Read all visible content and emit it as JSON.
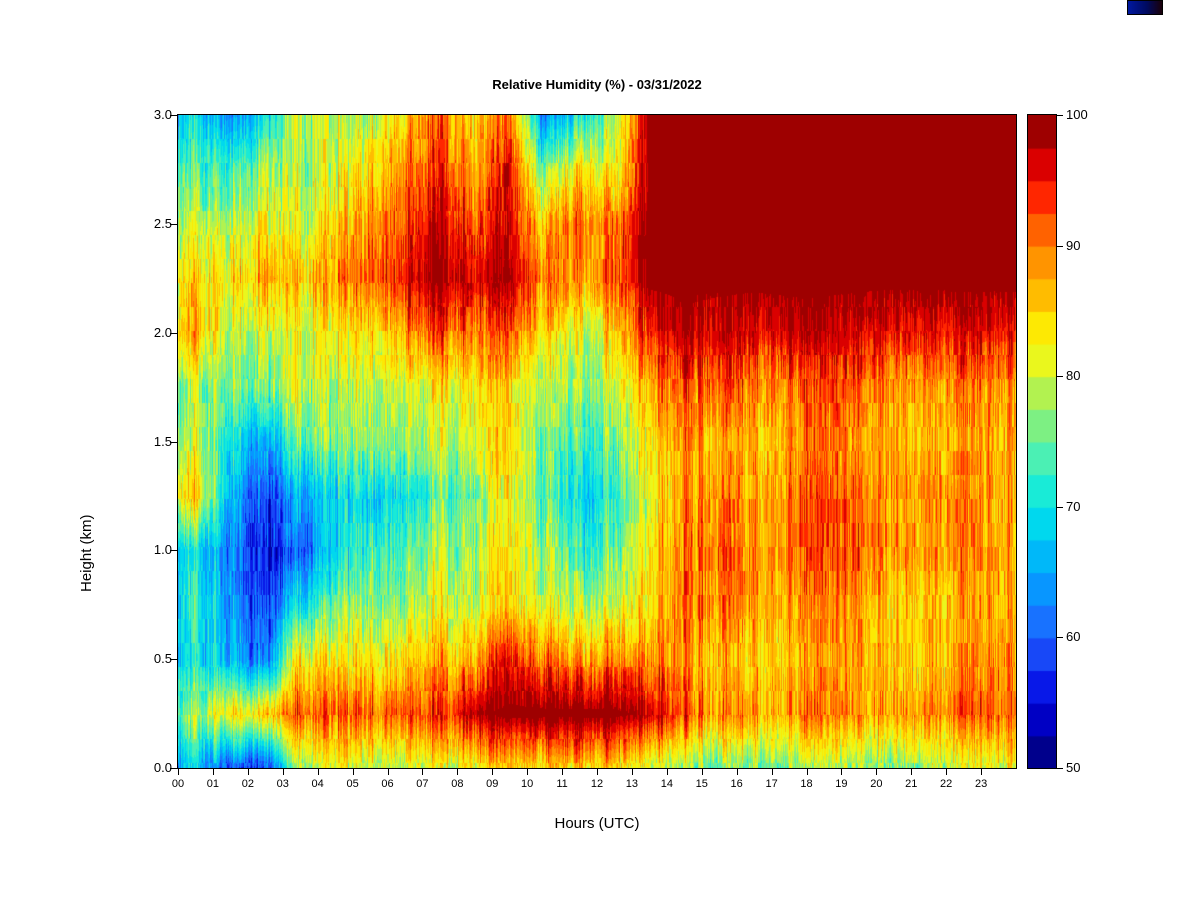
{
  "chart_data": {
    "type": "heatmap",
    "title": "Relative Humidity (%) - 03/31/2022",
    "xlabel": "Hours (UTC)",
    "ylabel": "Height (km)",
    "value_units": "%",
    "x_range_hours": [
      0,
      24
    ],
    "y_range_km": [
      0.0,
      3.0
    ],
    "xtick_labels": [
      "00",
      "01",
      "02",
      "03",
      "04",
      "05",
      "06",
      "07",
      "08",
      "09",
      "10",
      "11",
      "12",
      "13",
      "14",
      "15",
      "16",
      "17",
      "18",
      "19",
      "20",
      "21",
      "22",
      "23"
    ],
    "ytick_values": [
      0.0,
      0.5,
      1.0,
      1.5,
      2.0,
      2.5,
      3.0
    ],
    "ytick_labels": [
      "0.0",
      "0.5",
      "1.0",
      "1.5",
      "2.0",
      "2.5",
      "3.0"
    ],
    "heights_km": [
      0.0,
      0.25,
      0.5,
      0.75,
      1.0,
      1.25,
      1.5,
      1.75,
      2.0,
      2.25,
      2.5,
      2.75,
      3.0
    ],
    "values_by_height_then_hour": [
      [
        68,
        60,
        58,
        78,
        80,
        80,
        80,
        80,
        82,
        85,
        84,
        84,
        85,
        80,
        78,
        76,
        76,
        76,
        78,
        76,
        76,
        78,
        80,
        82
      ],
      [
        78,
        85,
        85,
        92,
        90,
        92,
        92,
        93,
        98,
        100,
        100,
        100,
        100,
        98,
        92,
        90,
        88,
        88,
        90,
        88,
        88,
        88,
        92,
        92
      ],
      [
        70,
        68,
        62,
        84,
        82,
        84,
        85,
        86,
        88,
        95,
        90,
        88,
        90,
        90,
        88,
        86,
        85,
        86,
        88,
        86,
        85,
        85,
        88,
        90
      ],
      [
        72,
        66,
        58,
        70,
        75,
        78,
        78,
        80,
        80,
        85,
        80,
        78,
        80,
        85,
        90,
        90,
        88,
        88,
        90,
        88,
        86,
        85,
        88,
        88
      ],
      [
        70,
        64,
        55,
        60,
        68,
        74,
        74,
        78,
        78,
        84,
        78,
        72,
        76,
        84,
        90,
        92,
        88,
        90,
        92,
        90,
        88,
        88,
        90,
        88
      ],
      [
        85,
        68,
        58,
        65,
        68,
        70,
        70,
        74,
        76,
        83,
        74,
        68,
        72,
        83,
        88,
        90,
        88,
        90,
        92,
        90,
        88,
        88,
        90,
        88
      ],
      [
        80,
        72,
        65,
        75,
        75,
        78,
        78,
        78,
        82,
        84,
        76,
        72,
        76,
        85,
        88,
        88,
        86,
        88,
        90,
        88,
        88,
        86,
        88,
        88
      ],
      [
        78,
        78,
        76,
        80,
        78,
        80,
        80,
        82,
        84,
        85,
        78,
        76,
        80,
        88,
        92,
        92,
        90,
        90,
        92,
        90,
        88,
        88,
        90,
        90
      ],
      [
        88,
        80,
        80,
        80,
        82,
        85,
        88,
        92,
        90,
        92,
        84,
        80,
        85,
        95,
        98,
        97,
        96,
        97,
        97,
        96,
        95,
        95,
        96,
        96
      ],
      [
        85,
        85,
        87,
        85,
        88,
        92,
        96,
        98,
        97,
        98,
        90,
        88,
        92,
        100,
        100,
        100,
        100,
        100,
        100,
        100,
        100,
        100,
        100,
        100
      ],
      [
        80,
        80,
        82,
        80,
        84,
        90,
        93,
        97,
        92,
        96,
        85,
        90,
        90,
        100,
        100,
        100,
        100,
        100,
        100,
        100,
        100,
        100,
        100,
        100
      ],
      [
        75,
        75,
        78,
        78,
        80,
        85,
        90,
        93,
        88,
        95,
        75,
        84,
        82,
        100,
        100,
        100,
        100,
        100,
        100,
        100,
        100,
        100,
        100,
        100
      ],
      [
        70,
        65,
        70,
        80,
        78,
        80,
        85,
        90,
        85,
        90,
        62,
        70,
        78,
        100,
        100,
        100,
        100,
        100,
        100,
        100,
        100,
        100,
        100,
        100
      ]
    ],
    "colorbar": {
      "min": 50,
      "max": 100,
      "ticks": [
        50,
        60,
        70,
        80,
        90,
        100
      ],
      "tick_labels": [
        "50",
        "60",
        "70",
        "80",
        "90",
        "100"
      ],
      "n_levels": 20
    },
    "colormap_stops": [
      [
        50,
        "#000070"
      ],
      [
        55,
        "#0000e0"
      ],
      [
        60,
        "#2060ff"
      ],
      [
        65,
        "#00a8ff"
      ],
      [
        70,
        "#00e8e8"
      ],
      [
        74,
        "#50f0b0"
      ],
      [
        78,
        "#a0f060"
      ],
      [
        81,
        "#e8f820"
      ],
      [
        84,
        "#ffe800"
      ],
      [
        86,
        "#ffc000"
      ],
      [
        88,
        "#ffa000"
      ],
      [
        90,
        "#ff8000"
      ],
      [
        92,
        "#ff5000"
      ],
      [
        94,
        "#ff2000"
      ],
      [
        96,
        "#e00000"
      ],
      [
        98,
        "#b00000"
      ],
      [
        100,
        "#800000"
      ]
    ]
  }
}
